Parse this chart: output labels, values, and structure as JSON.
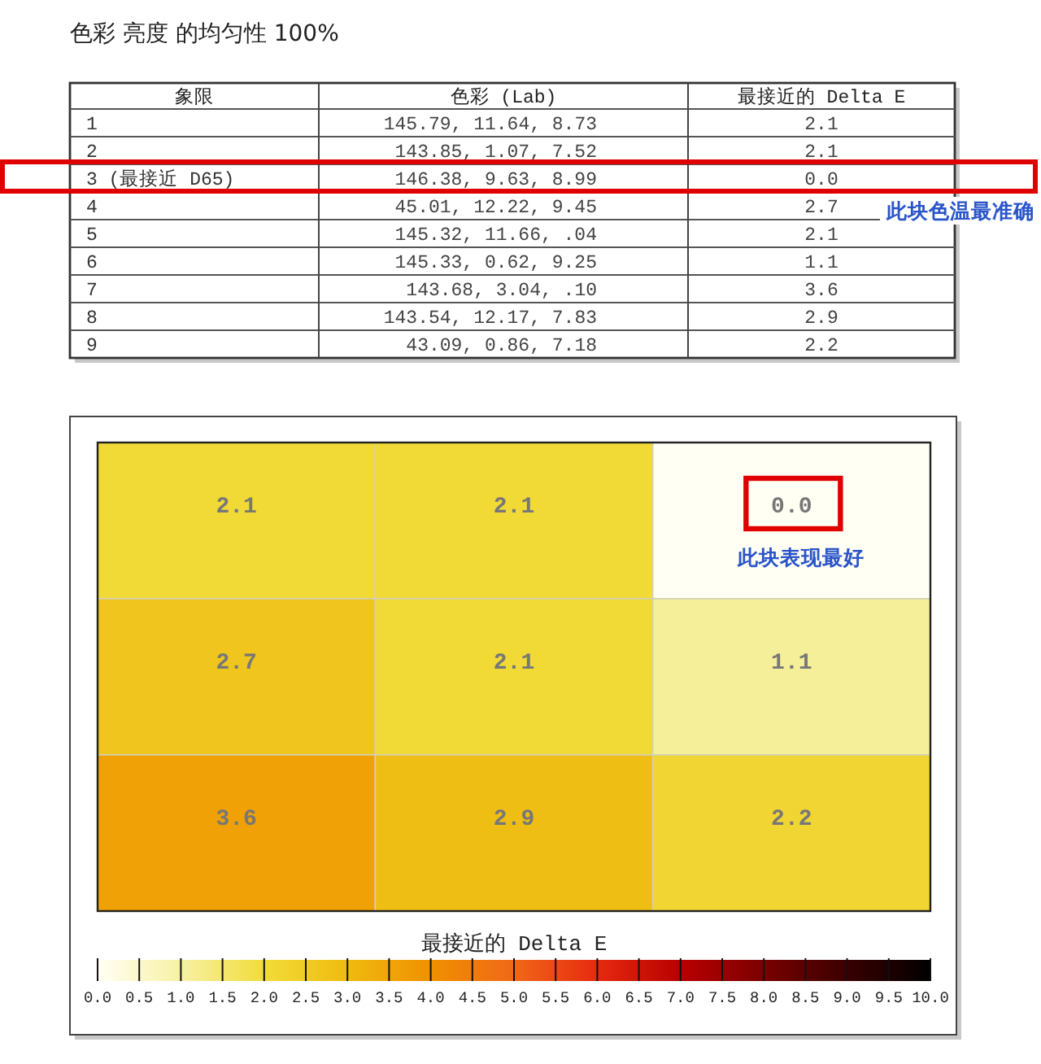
{
  "chart_data": [
    {
      "type": "other",
      "title": "色彩 亮度 的均匀性 100%",
      "categories": [
        "象限",
        "色彩 (Lab)",
        "最接近的 Delta E"
      ],
      "y_categories": [
        "1",
        "2",
        "3 (最接近 D65)",
        "4",
        "5",
        "6",
        "7",
        "8",
        "9"
      ],
      "cell_labels": [
        [
          "145.79, 11.64, 8.73",
          "2.1"
        ],
        [
          "143.85, 1.07, 7.52",
          "2.1"
        ],
        [
          "146.38, 9.63, 8.99",
          "0.0"
        ],
        [
          "45.01, 12.22, 9.45",
          "2.7"
        ],
        [
          "145.32, 11.66, .04",
          "2.1"
        ],
        [
          "145.33, 0.62, 9.25",
          "1.1"
        ],
        [
          "143.68, 3.04, .10",
          "3.6"
        ],
        [
          "143.54, 12.17, 7.83",
          "2.9"
        ],
        [
          "43.09, 0.86, 7.18",
          "2.2"
        ]
      ],
      "annotations": [
        "此块色温最准确"
      ]
    },
    {
      "type": "heatmap",
      "categories": [
        null,
        null,
        null
      ],
      "y_categories": [
        null,
        null,
        null
      ],
      "cells": [
        [
          2.1,
          2.1,
          0.0
        ],
        [
          2.7,
          2.1,
          1.1
        ],
        [
          3.6,
          2.9,
          2.2
        ]
      ],
      "cell_labels": [
        [
          "2.1",
          "2.1",
          "0.0"
        ],
        [
          "2.7",
          "2.1",
          "1.1"
        ],
        [
          "3.6",
          "2.9",
          "2.2"
        ]
      ],
      "clabel": "最接近的 Delta E",
      "clim": [
        0,
        10
      ],
      "cticks": [
        {
          "value": 0,
          "label": "0.0"
        },
        0.5,
        {
          "value": 1,
          "label": "1.0"
        },
        1.5,
        {
          "value": 2,
          "label": "2.0"
        },
        2.5,
        {
          "value": 3,
          "label": "3.0"
        },
        3.5,
        {
          "value": 4,
          "label": "4.0"
        },
        4.5,
        {
          "value": 5,
          "label": "5.0"
        },
        5.5,
        {
          "value": 6,
          "label": "6.0"
        },
        6.5,
        {
          "value": 7,
          "label": "7.0"
        },
        7.5,
        {
          "value": 8,
          "label": "8.0"
        },
        8.5,
        {
          "value": 9,
          "label": "9.0"
        },
        9.5,
        {
          "value": 10,
          "label": "10.0"
        }
      ],
      "annotations": [
        "此块表现最好"
      ]
    }
  ]
}
